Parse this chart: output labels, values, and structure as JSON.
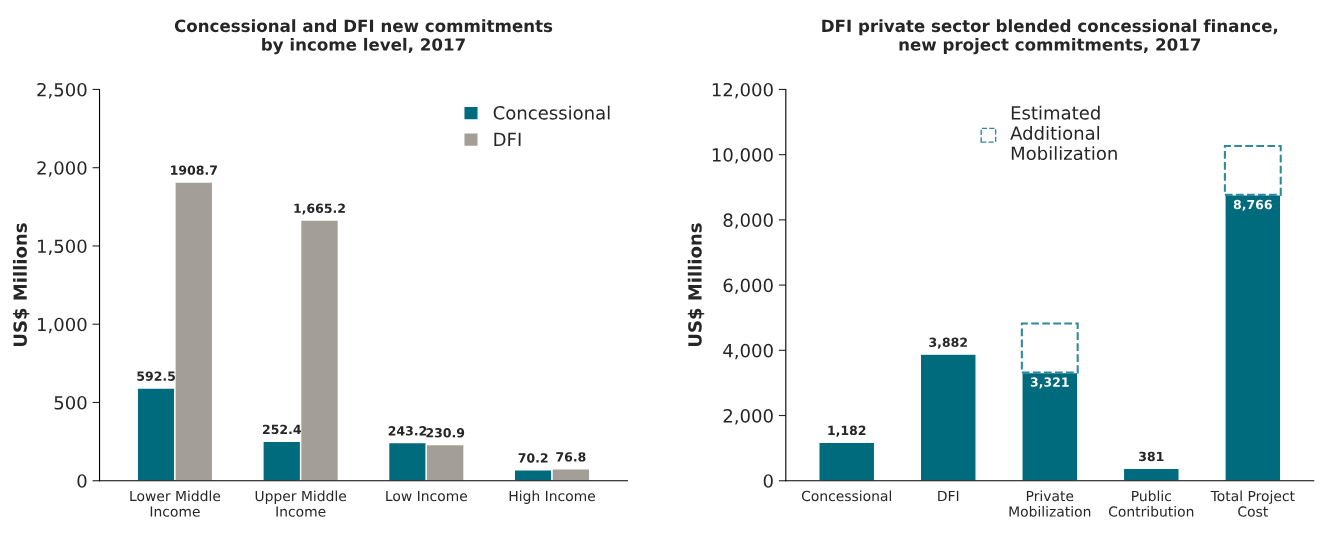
{
  "chart_data": [
    {
      "type": "bar",
      "title": "Concessional and DFI new commitments\nby income level, 2017",
      "ylabel": "US$ Millions",
      "categories": [
        "Lower Middle\nIncome",
        "Upper Middle\nIncome",
        "Low Income",
        "High Income"
      ],
      "series": [
        {
          "name": "Concessional",
          "color": "#006b7d",
          "values": [
            592.5,
            252.4,
            243.2,
            70.2
          ],
          "value_labels": [
            "592.5",
            "252.4",
            "243.2",
            "70.2"
          ]
        },
        {
          "name": "DFI",
          "color": "#a39e98",
          "values": [
            1908.7,
            1665.2,
            230.9,
            76.8
          ],
          "value_labels": [
            "1908.7",
            "1,665.2",
            "230.9",
            "76.8"
          ]
        }
      ],
      "ylim": [
        0,
        2500
      ],
      "yticks": [
        {
          "value": 0,
          "label": "0"
        },
        {
          "value": 500,
          "label": "500"
        },
        {
          "value": 1000,
          "label": "1,000"
        },
        {
          "value": 1500,
          "label": "1,500"
        },
        {
          "value": 2000,
          "label": "2,000"
        },
        {
          "value": 2500,
          "label": "2,500"
        }
      ],
      "legend": "top right",
      "grid": false
    },
    {
      "type": "bar",
      "title": "DFI private sector blended concessional finance,\nnew project commitments, 2017",
      "ylabel": "US$ Millions",
      "categories": [
        "Concessional",
        "DFI",
        "Private\nMobilization",
        "Public\nContribution",
        "Total Project\nCost"
      ],
      "stacked": true,
      "series": [
        {
          "color": "#006b7d",
          "values": [
            1182,
            3882,
            3321,
            381,
            8766
          ],
          "value_labels": [
            "1,182",
            "3,882",
            "3,321",
            "381",
            "8,766"
          ]
        },
        {
          "name": "Estimated\nAdditional\nMobilization",
          "color": "#2f8a9a",
          "line_style": "dashed",
          "values": [
            null,
            null,
            1500,
            null,
            1500
          ]
        }
      ],
      "ylim": [
        0,
        12000
      ],
      "yticks": [
        {
          "value": 0,
          "label": "0"
        },
        {
          "value": 2000,
          "label": "2,000"
        },
        {
          "value": 4000,
          "label": "4,000"
        },
        {
          "value": 6000,
          "label": "6,000"
        },
        {
          "value": 8000,
          "label": "8,000"
        },
        {
          "value": 10000,
          "label": "10,000"
        },
        {
          "value": 12000,
          "label": "12,000"
        }
      ],
      "legend": "top",
      "grid": false
    }
  ]
}
